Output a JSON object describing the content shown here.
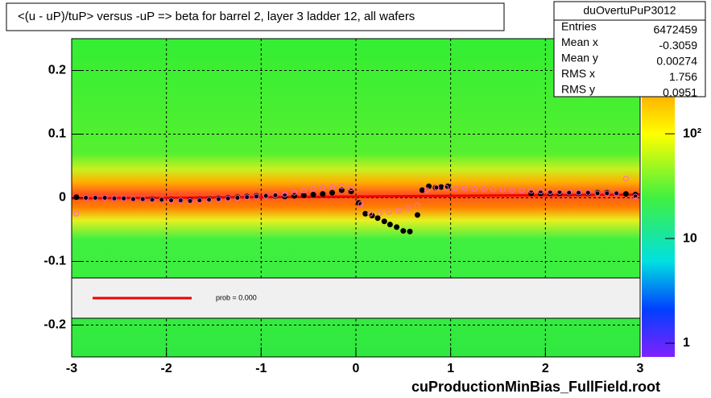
{
  "chart_data": {
    "type": "scatter",
    "title": "<(u - uP)/tuP> versus  -uP => beta for barrel 2, layer 3 ladder 12, all wafers",
    "footer": "cuProductionMinBias_FullField.root",
    "xlim": [
      -3,
      3
    ],
    "xticks": [
      -3,
      -2,
      -1,
      0,
      1,
      2,
      3
    ],
    "ylim": [
      -0.25,
      0.25
    ],
    "yticks": [
      -0.2,
      -0.1,
      0,
      0.1,
      0.2
    ],
    "grid": true,
    "zlim": [
      0.74,
      810
    ],
    "zscale": "log",
    "zticks": [
      1,
      10,
      {
        "value": 100,
        "label": "10²"
      }
    ],
    "series": [
      {
        "color": "#000000",
        "marker": "filled",
        "x": [
          -2.95,
          -2.85,
          -2.75,
          -2.65,
          -2.55,
          -2.45,
          -2.35,
          -2.25,
          -2.15,
          -2.05,
          -1.95,
          -1.85,
          -1.75,
          -1.65,
          -1.55,
          -1.45,
          -1.35,
          -1.25,
          -1.15,
          -1.05,
          -0.95,
          -0.85,
          -0.75,
          -0.65,
          -0.55,
          -0.45,
          -0.35,
          -0.25,
          -0.15,
          -0.05,
          0.03,
          0.1,
          0.17,
          0.23,
          0.3,
          0.36,
          0.43,
          0.5,
          0.57,
          0.65,
          0.7,
          0.77,
          0.84,
          0.9,
          0.97,
          1.85,
          1.95,
          2.05,
          2.15,
          2.25,
          2.35,
          2.45,
          2.55,
          2.65,
          2.75,
          2.85,
          2.95
        ],
        "values": [
          0.001,
          0,
          0,
          0,
          -0.001,
          -0.001,
          -0.002,
          -0.002,
          -0.002,
          -0.003,
          -0.003,
          -0.004,
          -0.004,
          -0.003,
          -0.002,
          -0.001,
          0,
          0.001,
          0.002,
          0.003,
          0.003,
          0.003,
          0.002,
          0.003,
          0.004,
          0.005,
          0.006,
          0.008,
          0.012,
          0.01,
          -0.008,
          -0.025,
          -0.028,
          -0.032,
          -0.037,
          -0.042,
          -0.046,
          -0.052,
          -0.053,
          -0.027,
          0.012,
          0.018,
          0.016,
          0.017,
          0.018,
          0.007,
          0.007,
          0.007,
          0.007,
          0.007,
          0.007,
          0.007,
          0.008,
          0.008,
          0.007,
          0.006,
          0.005
        ]
      },
      {
        "color": "#ff66cc",
        "marker": "open",
        "x": [
          -2.95,
          -2.85,
          -2.75,
          -2.65,
          -2.55,
          -2.45,
          -2.35,
          -2.25,
          -2.15,
          -2.05,
          -1.95,
          -1.85,
          -1.75,
          -1.65,
          -1.55,
          -1.45,
          -1.35,
          -1.25,
          -1.15,
          -1.05,
          -0.95,
          -0.85,
          -0.75,
          -0.65,
          -0.55,
          -0.45,
          -0.35,
          -0.25,
          -0.15,
          -0.05,
          0.05,
          0.15,
          0.25,
          0.35,
          0.45,
          0.55,
          0.65,
          0.75,
          0.85,
          0.95,
          1.05,
          1.15,
          1.25,
          1.35,
          1.45,
          1.55,
          1.65,
          1.75,
          1.85,
          1.95,
          2.05,
          2.15,
          2.25,
          2.35,
          2.45,
          2.55,
          2.65,
          2.75,
          2.85,
          2.95
        ],
        "values": [
          -0.025,
          0,
          0,
          0,
          -0.001,
          -0.001,
          -0.002,
          -0.002,
          -0.003,
          -0.003,
          -0.004,
          -0.004,
          -0.005,
          -0.004,
          -0.003,
          -0.002,
          -0.001,
          0,
          0.001,
          0.002,
          0.003,
          0.004,
          0.005,
          0.008,
          0.011,
          0.014,
          0.016,
          0.017,
          0.018,
          0.015,
          -0.01,
          -0.025,
          -0.024,
          -0.022,
          -0.02,
          -0.016,
          -0.012,
          0.012,
          0.016,
          0.016,
          0.015,
          0.015,
          0.014,
          0.014,
          0.013,
          0.013,
          0.012,
          0.012,
          0.011,
          0.01,
          0.009,
          0.009,
          0.008,
          0.008,
          0.008,
          0.007,
          0.007,
          0.007,
          0.03,
          0.002
        ]
      }
    ],
    "fit": {
      "color": "#ee0000",
      "x": [
        -3,
        3
      ],
      "values": [
        -0.001,
        0.005
      ]
    },
    "legend": {
      "label": "prob = 0.000"
    },
    "stats": {
      "title": "duOvertuPuP3012",
      "rows": [
        [
          "Entries",
          "6472459"
        ],
        [
          "Mean x",
          "-0.3059"
        ],
        [
          "Mean y",
          "0.00274"
        ],
        [
          "RMS x",
          "1.756"
        ],
        [
          "RMS y",
          "0.0951"
        ]
      ]
    }
  }
}
